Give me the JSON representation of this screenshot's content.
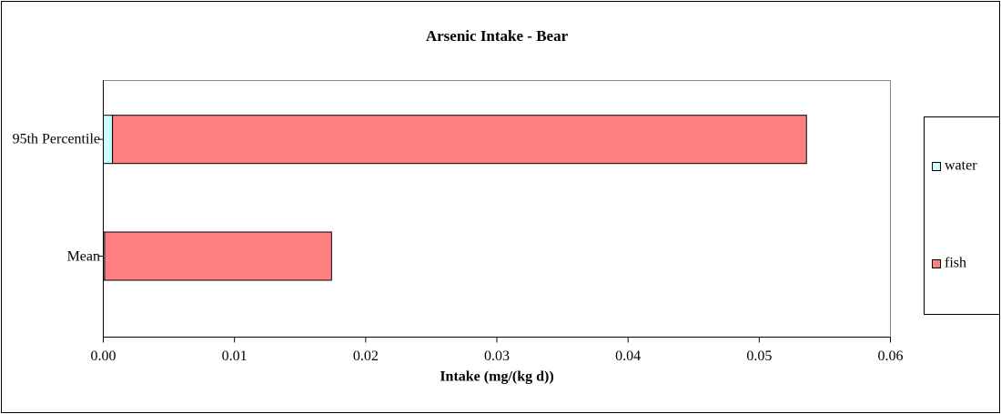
{
  "chart_data": {
    "type": "stacked-bar-horizontal",
    "title": "Arsenic Intake - Bear",
    "x_label": "Intake (mg/(kg d))",
    "categories": [
      "Mean",
      "95th Percentile"
    ],
    "series": [
      {
        "name": "water",
        "color": "#ccffff",
        "values": [
          0.0001,
          0.0007
        ]
      },
      {
        "name": "fish",
        "color": "#ff8080",
        "values": [
          0.0173,
          0.0529
        ]
      }
    ],
    "xlim": [
      0,
      0.06
    ],
    "xticks": [
      {
        "value": 0,
        "label": "0.00"
      },
      0.01,
      0.02,
      0.03,
      0.04,
      0.05,
      0.06
    ],
    "legend": "right"
  }
}
